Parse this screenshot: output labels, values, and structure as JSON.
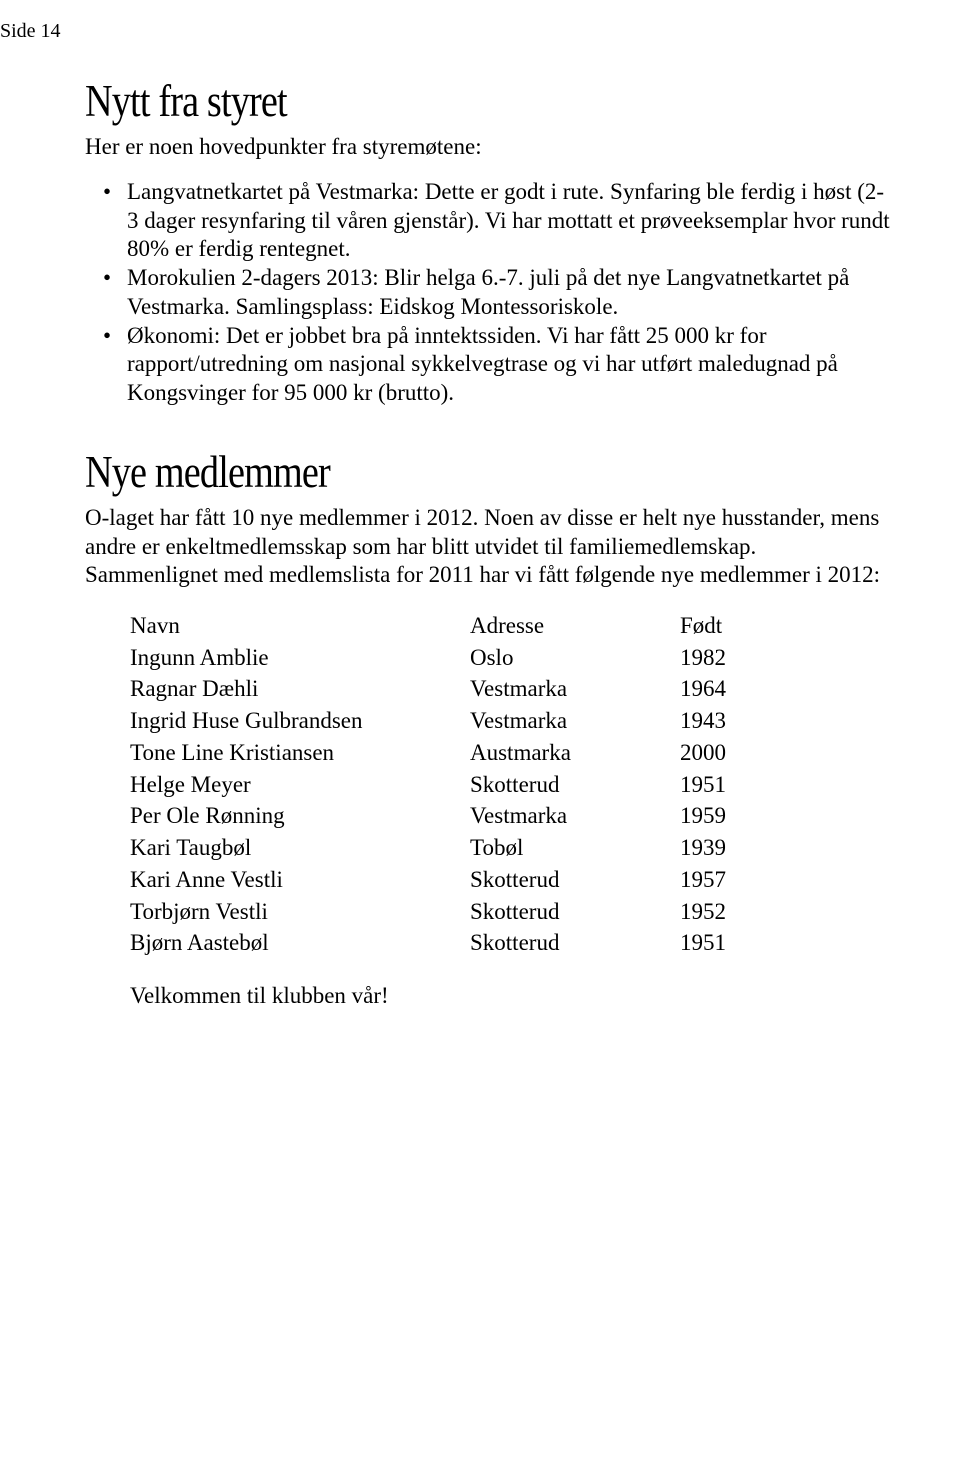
{
  "page_label": "Side 14",
  "section1": {
    "heading": "Nytt fra styret",
    "intro": "Her er noen hovedpunkter fra styremøtene:",
    "bullets": [
      "Langvatnetkartet på Vestmarka: Dette er godt i rute. Synfaring ble ferdig i høst (2-3 dager resynfaring til våren gjenstår). Vi har mottatt et prøveeksemplar hvor rundt 80% er ferdig rentegnet.",
      "Morokulien 2-dagers 2013: Blir helga 6.-7. juli på det nye Langvatnetkartet på Vestmarka. Samlingsplass: Eidskog Montessoriskole.",
      "Økonomi: Det er jobbet bra på inntektssiden. Vi har fått 25 000 kr for rapport/utredning om nasjonal sykkelvegtrase og vi har utført maledugnad på Kongsvinger for 95 000 kr (brutto)."
    ]
  },
  "section2": {
    "heading": "Nye medlemmer",
    "body": "O-laget har fått 10 nye medlemmer i 2012. Noen av disse er helt nye husstander, mens andre er enkeltmedlemsskap som har blitt utvidet til familiemedlemskap. Sammenlignet med medlemslista for 2011 har vi fått følgende nye medlemmer i 2012:",
    "table": {
      "columns": [
        "Navn",
        "Adresse",
        "Født"
      ],
      "rows": [
        [
          "Ingunn Amblie",
          "Oslo",
          "1982"
        ],
        [
          "Ragnar Dæhli",
          "Vestmarka",
          "1964"
        ],
        [
          "Ingrid Huse Gulbrandsen",
          "Vestmarka",
          "1943"
        ],
        [
          "Tone Line Kristiansen",
          "Austmarka",
          "2000"
        ],
        [
          "Helge Meyer",
          "Skotterud",
          "1951"
        ],
        [
          "Per Ole Rønning",
          "Vestmarka",
          "1959"
        ],
        [
          "Kari Taugbøl",
          "Tobøl",
          "1939"
        ],
        [
          "Kari Anne Vestli",
          "Skotterud",
          "1957"
        ],
        [
          "Torbjørn Vestli",
          "Skotterud",
          "1952"
        ],
        [
          "Bjørn Aastebøl",
          "Skotterud",
          "1951"
        ]
      ]
    },
    "closing": "Velkommen til klubben vår!"
  },
  "colors": {
    "background": "#ffffff",
    "text": "#000000"
  },
  "typography": {
    "body_fontsize_pt": 17,
    "heading_fontsize_pt": 34
  }
}
